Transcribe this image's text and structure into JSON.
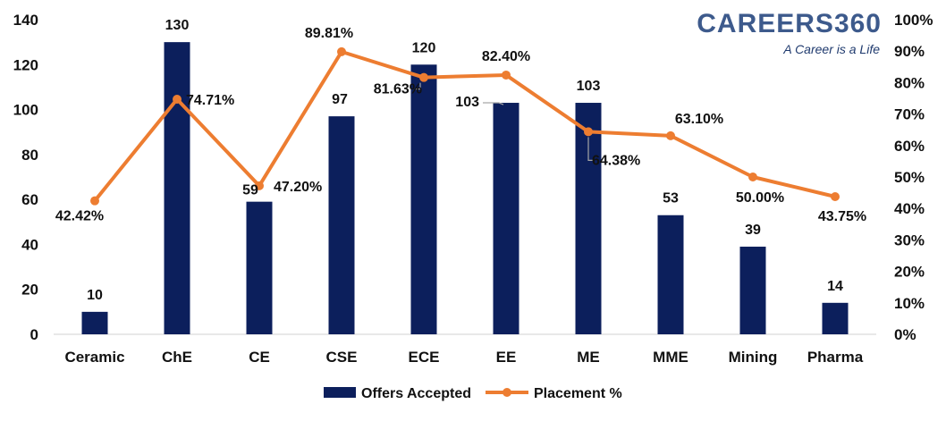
{
  "logo": {
    "name": "CAREERS360",
    "tagline": "A Career is a Life"
  },
  "chart_data": {
    "type": "bar",
    "categories": [
      "Ceramic",
      "ChE",
      "CE",
      "CSE",
      "ECE",
      "EE",
      "ME",
      "MME",
      "Mining",
      "Pharma"
    ],
    "series": [
      {
        "name": "Offers Accepted",
        "type": "bar",
        "axis": "left",
        "color": "#0c1f5c",
        "values": [
          10,
          130,
          59,
          97,
          120,
          103,
          103,
          53,
          39,
          14
        ],
        "labels": [
          "10",
          "130",
          "59",
          "97",
          "120",
          "103",
          "103",
          "53",
          "39",
          "14"
        ]
      },
      {
        "name": "Placement %",
        "type": "line",
        "axis": "right",
        "color": "#ed7d31",
        "values": [
          42.42,
          74.71,
          47.2,
          89.81,
          81.63,
          82.4,
          64.38,
          63.1,
          50.0,
          43.75
        ],
        "labels": [
          "42.42%",
          "74.71%",
          "47.20%",
          "89.81%",
          "81.63%",
          "82.40%",
          "64.38%",
          "63.10%",
          "50.00%",
          "43.75%"
        ]
      }
    ],
    "ylim": [
      0,
      140
    ],
    "yticks": [
      0,
      20,
      40,
      60,
      80,
      100,
      120,
      140
    ],
    "y2lim": [
      0,
      100
    ],
    "y2ticks": [
      "0%",
      "10%",
      "20%",
      "30%",
      "40%",
      "50%",
      "60%",
      "70%",
      "80%",
      "90%",
      "100%"
    ],
    "grid": false,
    "legend_position": "bottom"
  }
}
